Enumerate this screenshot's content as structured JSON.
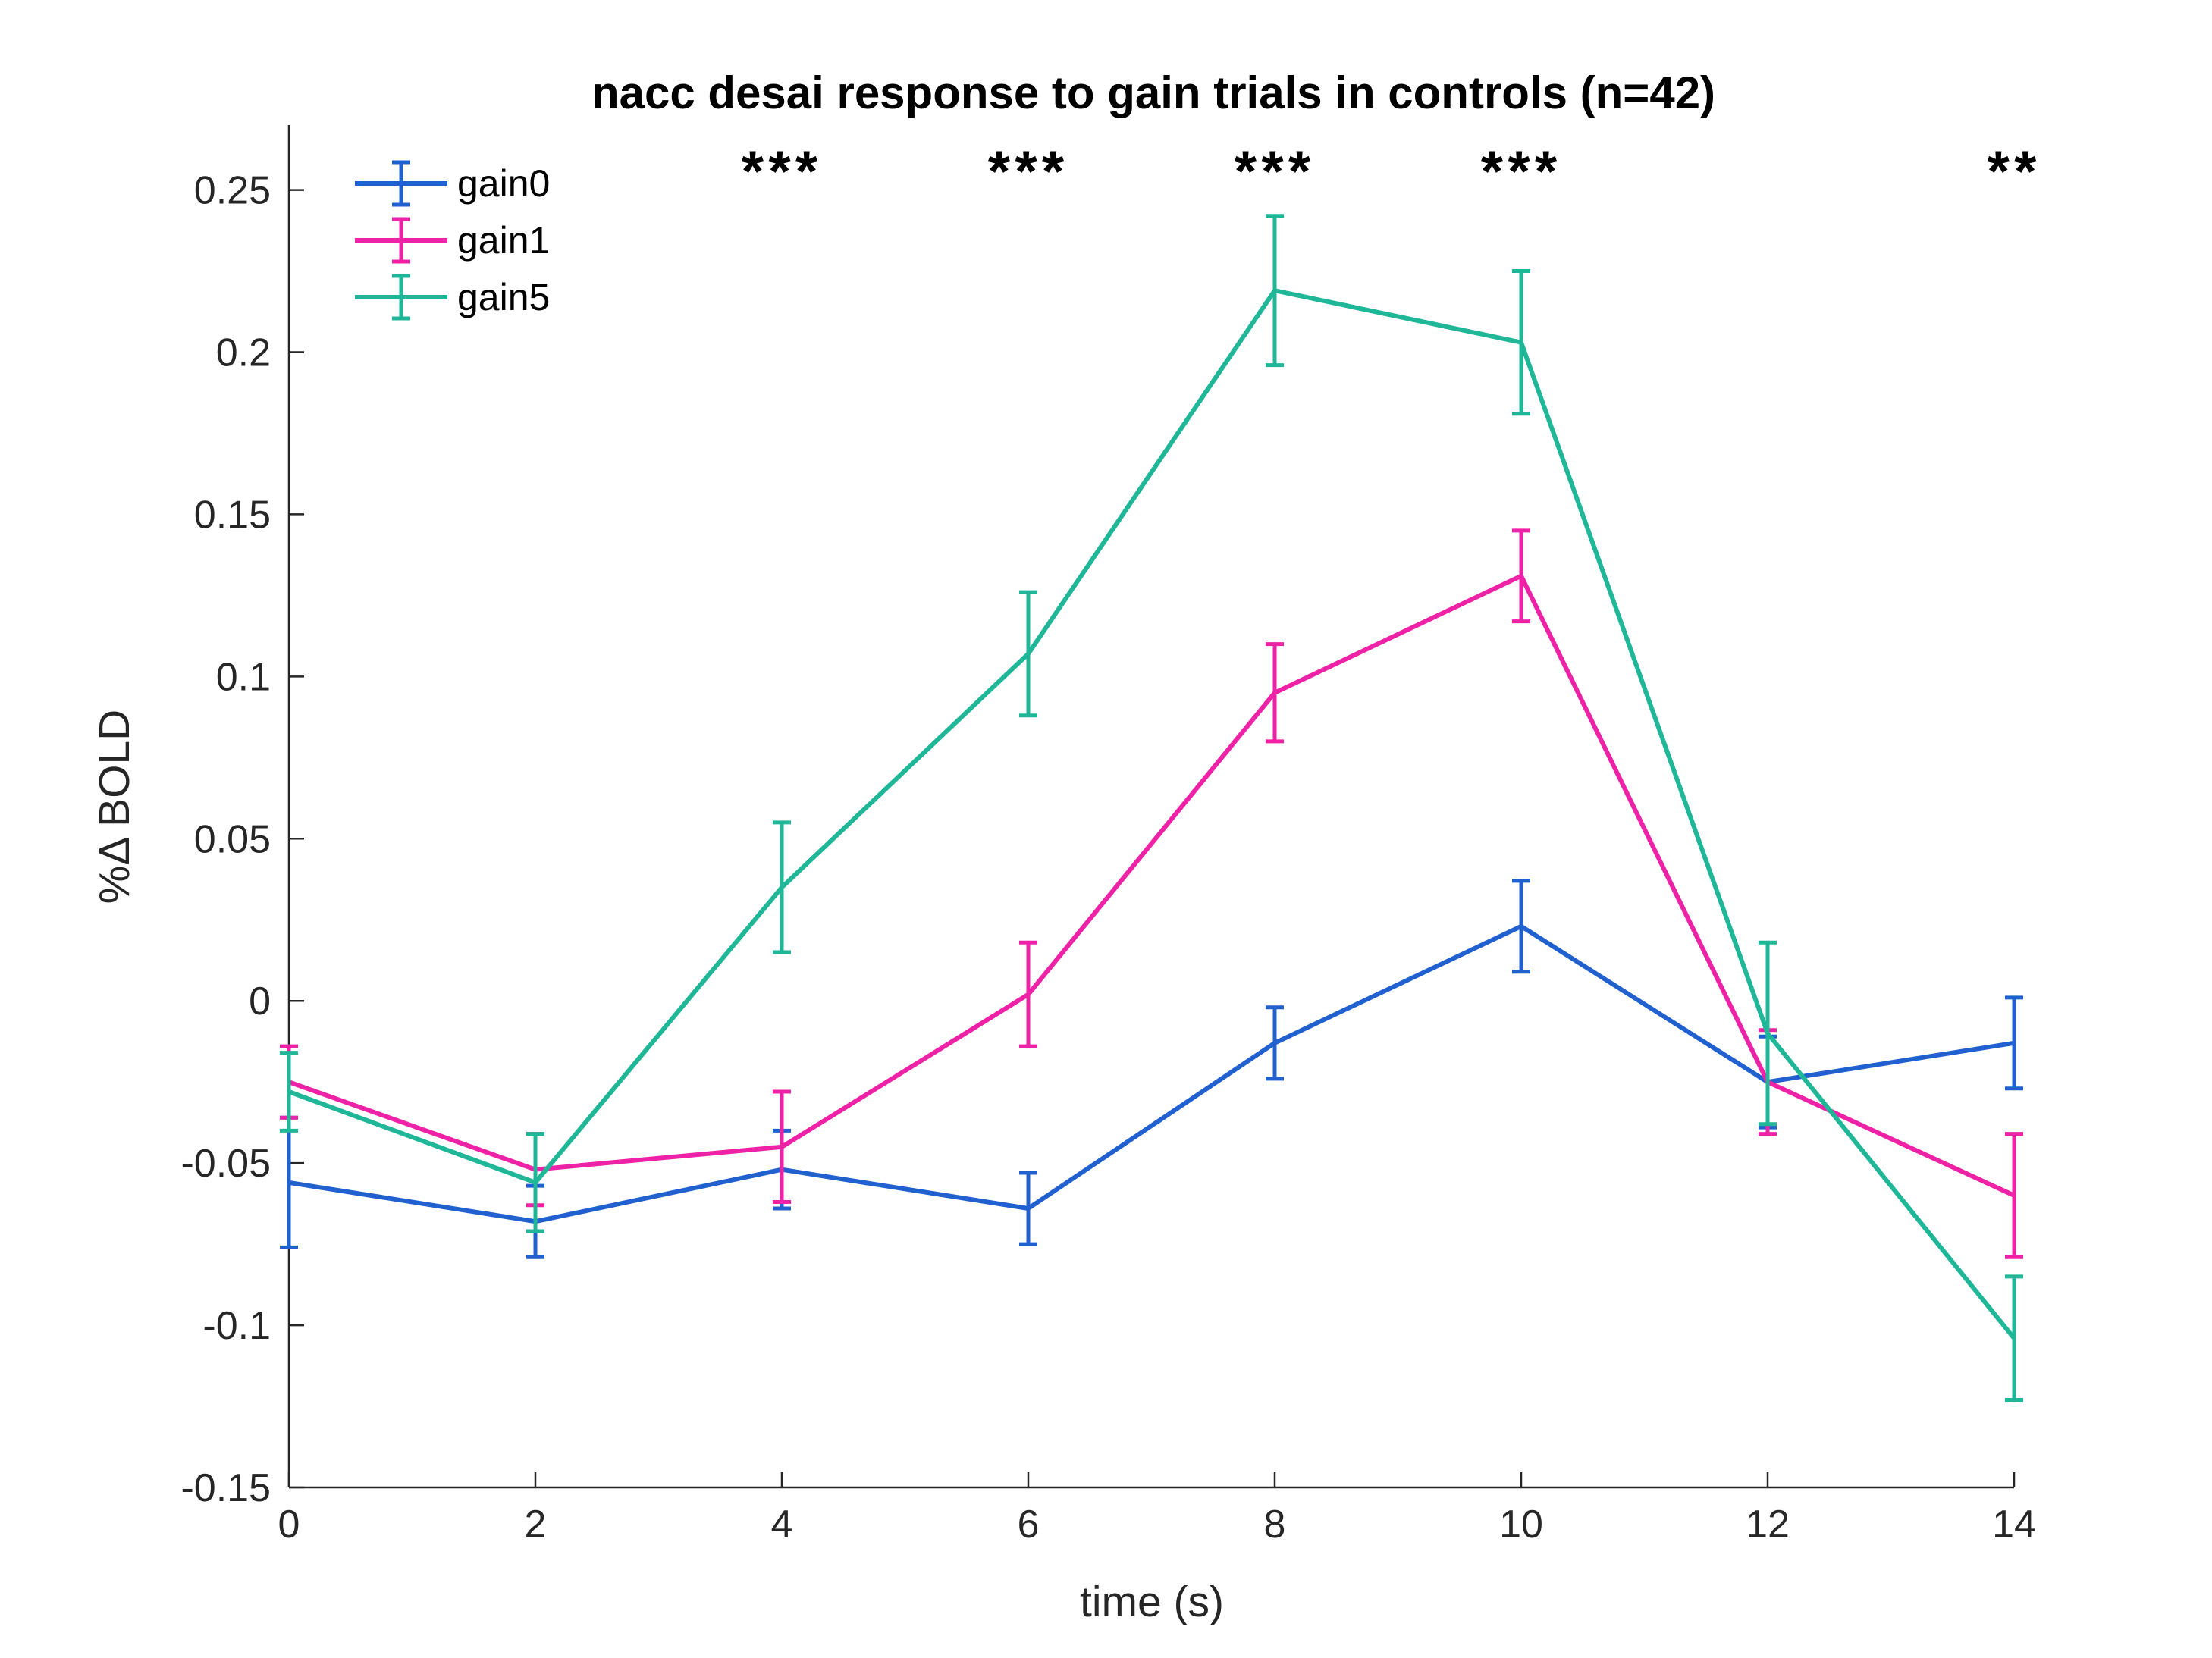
{
  "chart_data": {
    "type": "line",
    "title": "nacc desai response to gain trials in controls (n=42)",
    "xlabel": "time (s)",
    "ylabel": "%Δ BOLD",
    "x": [
      0,
      2,
      4,
      6,
      8,
      10,
      12,
      14
    ],
    "xlim": [
      0,
      14
    ],
    "ylim": [
      -0.15,
      0.27
    ],
    "xticks": [
      "0",
      "2",
      "4",
      "6",
      "8",
      "10",
      "12",
      "14"
    ],
    "yticks": [
      "-0.15",
      "-0.1",
      "-0.05",
      "0",
      "0.05",
      "0.1",
      "0.15",
      "0.2",
      "0.25"
    ],
    "ytick_values": [
      -0.15,
      -0.1,
      -0.05,
      0,
      0.05,
      0.1,
      0.15,
      0.2,
      0.25
    ],
    "grid": false,
    "legend_position": "top-left",
    "series": [
      {
        "name": "gain0",
        "color": "#2060CF",
        "values": [
          -0.056,
          -0.068,
          -0.052,
          -0.064,
          -0.013,
          0.023,
          -0.025,
          -0.013
        ],
        "errors": [
          0.02,
          0.011,
          0.012,
          0.011,
          0.011,
          0.014,
          0.014,
          0.014
        ]
      },
      {
        "name": "gain1",
        "color": "#EE22A6",
        "values": [
          -0.025,
          -0.052,
          -0.045,
          0.002,
          0.095,
          0.131,
          -0.025,
          -0.06
        ],
        "errors": [
          0.011,
          0.011,
          0.017,
          0.016,
          0.015,
          0.014,
          0.016,
          0.019
        ]
      },
      {
        "name": "gain5",
        "color": "#1FB797",
        "values": [
          -0.028,
          -0.056,
          0.035,
          0.107,
          0.219,
          0.203,
          -0.01,
          -0.104
        ],
        "errors": [
          0.012,
          0.015,
          0.02,
          0.019,
          0.023,
          0.022,
          0.028,
          0.019
        ]
      }
    ],
    "annotations": [
      {
        "x": 4,
        "text": "***"
      },
      {
        "x": 6,
        "text": "***"
      },
      {
        "x": 8,
        "text": "***"
      },
      {
        "x": 10,
        "text": "***"
      },
      {
        "x": 14,
        "text": "**"
      }
    ]
  }
}
